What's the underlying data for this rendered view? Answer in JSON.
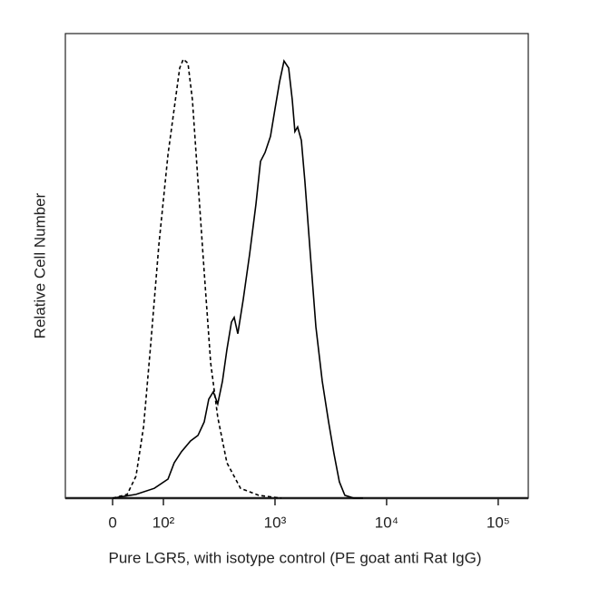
{
  "chart_data": {
    "type": "line",
    "xlabel": "Pure LGR5, with isotype control (PE goat anti Rat IgG)",
    "ylabel": "Relative Cell Number",
    "xscale": "biexponential",
    "xlim": [
      -93,
      186000
    ],
    "ylim": [
      0,
      100
    ],
    "xticks": [
      0,
      {
        "value": 100,
        "label": "10²"
      },
      {
        "value": 1000,
        "label": "10³"
      },
      {
        "value": 10000,
        "label": "10⁴"
      },
      {
        "value": 100000,
        "label": "10⁵"
      }
    ],
    "series": [
      {
        "name": "Pure LGR5",
        "color": "#000000",
        "linestyle": "solid",
        "x": [
          0,
          46,
          82,
          110,
          125,
          145,
          175,
          204,
          232,
          255,
          280,
          307,
          338,
          371,
          407,
          431,
          464,
          519,
          592,
          675,
          741,
          814,
          911,
          1000,
          1099,
          1205,
          1324,
          1427,
          1509,
          1596,
          1722,
          1854,
          2074,
          2322,
          2648,
          3020,
          3375,
          3776,
          4227,
          5096,
          6148
        ],
        "values": [
          0,
          0.8,
          2.1,
          4.1,
          7.6,
          10,
          12.3,
          13.5,
          16.4,
          21.3,
          22.9,
          20.3,
          25.2,
          32,
          37.9,
          38.9,
          35.4,
          42.8,
          52.5,
          63.3,
          72.5,
          74.4,
          77.9,
          83.8,
          89.6,
          94.1,
          92.6,
          85.7,
          78.9,
          79.9,
          77,
          68.2,
          52.5,
          36.9,
          25.2,
          16.4,
          9.6,
          3.5,
          0.6,
          0,
          0
        ]
      },
      {
        "name": "Isotype control",
        "color": "#000000",
        "linestyle": "dashed",
        "x": [
          0,
          28.6,
          46,
          61,
          75,
          91,
          110,
          128,
          140,
          151,
          166,
          182,
          204,
          232,
          265,
          307,
          371,
          491,
          714,
          1140
        ],
        "values": [
          0,
          0.8,
          4.7,
          15.4,
          33,
          54.5,
          74,
          85.7,
          92.6,
          94.5,
          93.6,
          85.7,
          68.2,
          48.6,
          29.1,
          17.4,
          7.6,
          2.1,
          0.6,
          0
        ]
      }
    ]
  }
}
